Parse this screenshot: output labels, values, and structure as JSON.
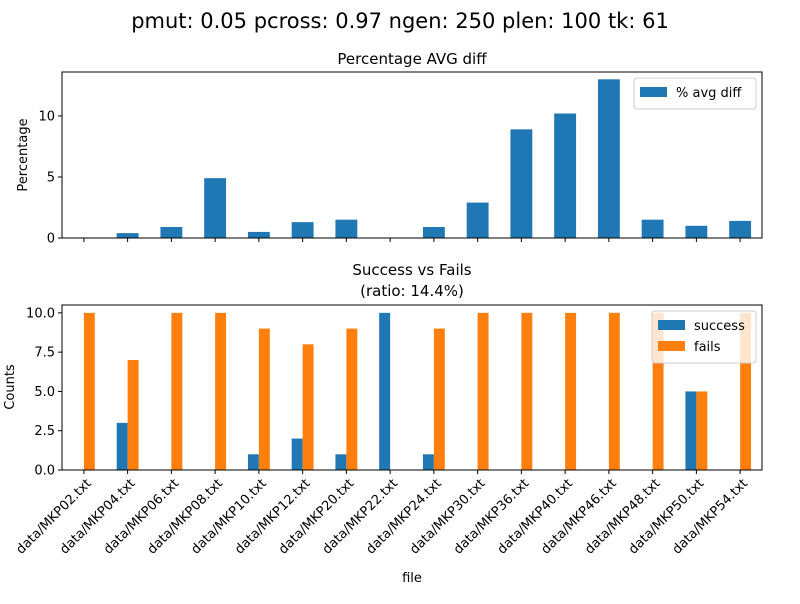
{
  "suptitle": "pmut: 0.05 pcross: 0.97 ngen: 250 plen: 100 tk: 61",
  "colors": {
    "blue": "#1f77b4",
    "orange": "#ff7f0e"
  },
  "chart_data": [
    {
      "type": "bar",
      "title": "Percentage AVG diff",
      "xlabel": "",
      "ylabel": "Percentage",
      "ylim": [
        0,
        13.6
      ],
      "yticks": [
        0,
        5,
        10
      ],
      "legend": "top-right",
      "categories": [
        "data/MKP02.txt",
        "data/MKP04.txt",
        "data/MKP06.txt",
        "data/MKP08.txt",
        "data/MKP10.txt",
        "data/MKP12.txt",
        "data/MKP20.txt",
        "data/MKP22.txt",
        "data/MKP24.txt",
        "data/MKP30.txt",
        "data/MKP36.txt",
        "data/MKP40.txt",
        "data/MKP46.txt",
        "data/MKP48.txt",
        "data/MKP50.txt",
        "data/MKP54.txt"
      ],
      "series": [
        {
          "name": "% avg diff",
          "color": "#1f77b4",
          "values": [
            0,
            0.4,
            0.9,
            4.9,
            0.5,
            1.3,
            1.5,
            0,
            0.9,
            2.9,
            8.9,
            10.2,
            13.0,
            1.5,
            1.0,
            1.4
          ]
        }
      ]
    },
    {
      "type": "bar",
      "title": "Success vs Fails",
      "subtitle": "(ratio: 14.4%)",
      "xlabel": "file",
      "ylabel": "Counts",
      "ylim": [
        0,
        10.5
      ],
      "yticks": [
        "0.0",
        "2.5",
        "5.0",
        "7.5",
        "10.0"
      ],
      "legend": "top-right",
      "categories": [
        "data/MKP02.txt",
        "data/MKP04.txt",
        "data/MKP06.txt",
        "data/MKP08.txt",
        "data/MKP10.txt",
        "data/MKP12.txt",
        "data/MKP20.txt",
        "data/MKP22.txt",
        "data/MKP24.txt",
        "data/MKP30.txt",
        "data/MKP36.txt",
        "data/MKP40.txt",
        "data/MKP46.txt",
        "data/MKP48.txt",
        "data/MKP50.txt",
        "data/MKP54.txt"
      ],
      "series": [
        {
          "name": "success",
          "color": "#1f77b4",
          "values": [
            0,
            3,
            0,
            0,
            1,
            2,
            1,
            10,
            1,
            0,
            0,
            0,
            0,
            0,
            5,
            0
          ]
        },
        {
          "name": "fails",
          "color": "#ff7f0e",
          "values": [
            10,
            7,
            10,
            10,
            9,
            8,
            9,
            0,
            9,
            10,
            10,
            10,
            10,
            10,
            5,
            10
          ]
        }
      ]
    }
  ]
}
